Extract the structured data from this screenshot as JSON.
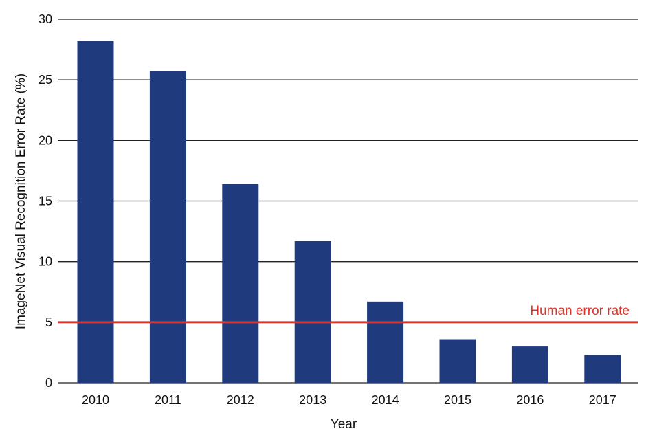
{
  "chart_data": {
    "type": "bar",
    "title": "",
    "xlabel": "Year",
    "ylabel": "ImageNet Visual Recognition Error Rate (%)",
    "categories": [
      "2010",
      "2011",
      "2012",
      "2013",
      "2014",
      "2015",
      "2016",
      "2017"
    ],
    "values": [
      28.2,
      25.7,
      16.4,
      11.7,
      6.7,
      3.6,
      3.0,
      2.3
    ],
    "ylim": [
      0,
      30
    ],
    "yticks": [
      0,
      5,
      10,
      15,
      20,
      25,
      30
    ],
    "grid": "horizontal",
    "reference_line": {
      "label": "Human error rate",
      "value": 5
    },
    "colors": {
      "bar": "#1f3a7d",
      "reference_line": "#e0332b",
      "grid": "#222222"
    }
  }
}
